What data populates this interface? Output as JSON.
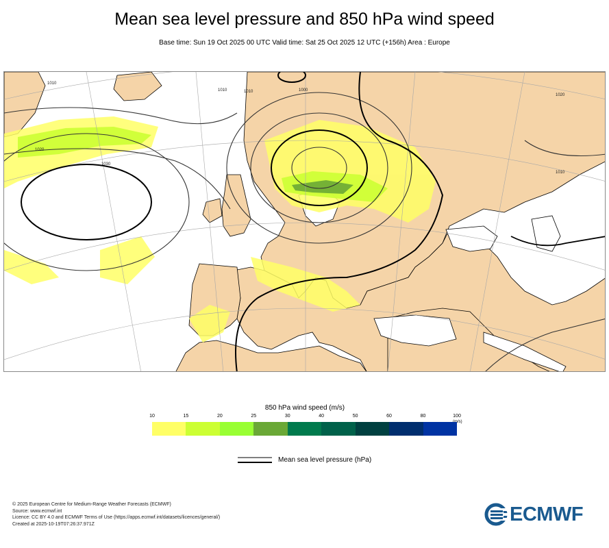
{
  "header": {
    "title": "Mean sea level pressure and 850 hPa wind speed",
    "subtitle": "Base time: Sun 19 Oct 2025 00 UTC Valid time: Sat 25 Oct 2025 12 UTC (+156h) Area : Europe"
  },
  "map": {
    "isobar_labels": [
      "1010",
      "1020",
      "1030",
      "1000",
      "1010",
      "1010",
      "1010",
      "1020"
    ],
    "colors": {
      "land": "#f5d4a8",
      "sea": "#ffffff",
      "coast": "#000000",
      "isobar": "#333333",
      "graticule": "#a7a7a7"
    }
  },
  "legend": {
    "title": "850 hPa wind speed (m/s)",
    "unit": "(m/s)",
    "ticks": [
      "10",
      "15",
      "20",
      "25",
      "30",
      "40",
      "50",
      "60",
      "80",
      "100"
    ],
    "colors": [
      "#ffff66",
      "#ccff33",
      "#99ff33",
      "#6aa836",
      "#007a4d",
      "#00614a",
      "#004040",
      "#002e6e",
      "#0033a3"
    ],
    "mslp_label": "Mean sea level pressure (hPa)"
  },
  "footer": {
    "lines": [
      "© 2025 European Centre for Medium-Range Weather Forecasts (ECMWF)",
      "Source: www.ecmwf.int",
      "Licence: CC BY 4.0 and ECMWF Terms of Use (https://apps.ecmwf.int/datasets/licences/general/)",
      "Created at 2025-10-19T07:26:37.971Z"
    ]
  },
  "logo": {
    "text": "ECMWF",
    "color": "#1a5a8f"
  }
}
